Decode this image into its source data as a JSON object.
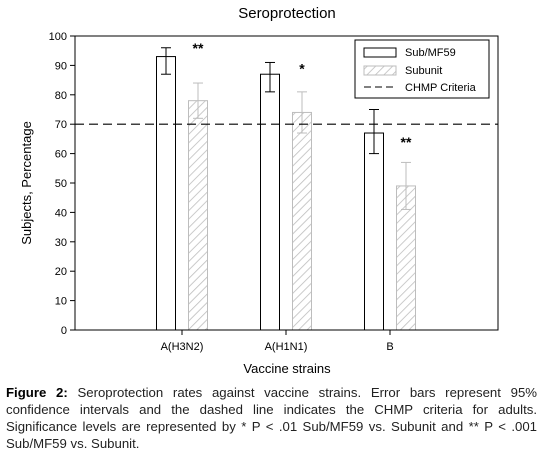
{
  "chart_data": {
    "type": "bar",
    "title": "Seroprotection",
    "xlabel": "Vaccine strains",
    "ylabel": "Subjects, Percentage",
    "ylim": [
      0,
      100
    ],
    "yticks": [
      0,
      10,
      20,
      30,
      40,
      50,
      60,
      70,
      80,
      90,
      100
    ],
    "categories": [
      "A(H3N2)",
      "A(H1N1)",
      "B"
    ],
    "series": [
      {
        "name": "Sub/MF59",
        "values": [
          93,
          87,
          67
        ],
        "err_low": [
          87,
          81,
          60
        ],
        "err_high": [
          96,
          91,
          75
        ],
        "style": "open",
        "color": "#000000"
      },
      {
        "name": "Subunit",
        "values": [
          78,
          74,
          49
        ],
        "err_low": [
          72,
          67,
          41
        ],
        "err_high": [
          84,
          81,
          57
        ],
        "style": "hatched",
        "color": "#bdbdbd"
      }
    ],
    "reference_line": {
      "name": "CHMP Criteria",
      "value": 70,
      "style": "dashed"
    },
    "annotations": [
      {
        "category": "A(H3N2)",
        "text": "**",
        "y": 97
      },
      {
        "category": "A(H1N1)",
        "text": "*",
        "y": 90
      },
      {
        "category": "B",
        "text": "**",
        "y": 65
      }
    ],
    "legend_position": "top-right",
    "grid": false
  },
  "caption": {
    "label": "Figure 2:",
    "text": "Seroprotection rates against vaccine strains. Error bars represent 95% confidence intervals and the dashed line indicates the CHMP criteria for adults. Significance levels are represented by * P < .01 Sub/MF59 vs. Subunit and ** P < .001 Sub/MF59 vs. Subunit."
  }
}
